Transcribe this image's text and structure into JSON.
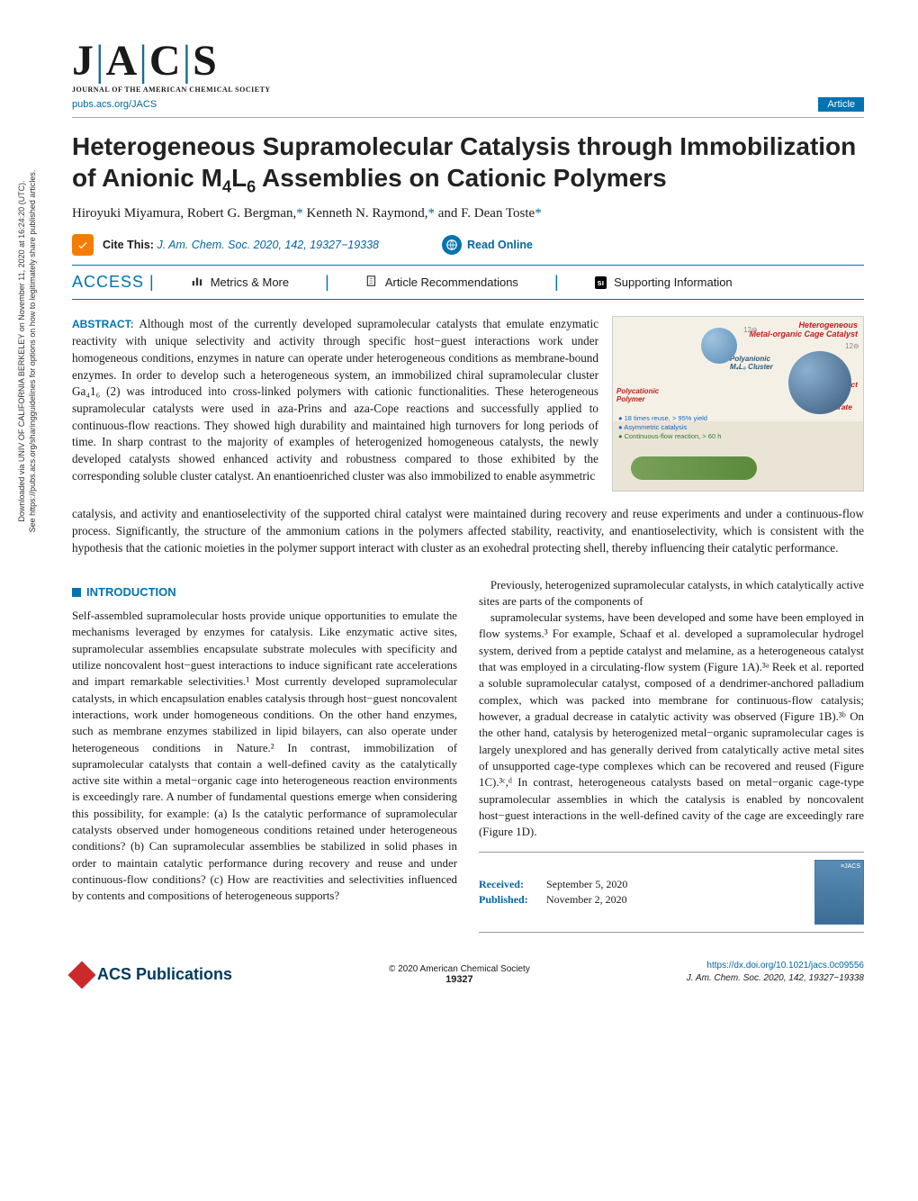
{
  "journal": {
    "logo_main": "J|A|C|S",
    "logo_sub": "JOURNAL OF THE AMERICAN CHEMICAL SOCIETY",
    "url": "pubs.acs.org/JACS",
    "type_badge": "Article"
  },
  "side_note": {
    "line1": "Downloaded via UNIV OF CALIFORNIA BERKELEY on November 11, 2020 at 16:24:20 (UTC).",
    "line2": "See https://pubs.acs.org/sharingguidelines for options on how to legitimately share published articles."
  },
  "paper": {
    "title_html": "Heterogeneous Supramolecular Catalysis through Immobilization of Anionic M<sub>4</sub>L<sub>6</sub> Assemblies on Cationic Polymers",
    "authors_html": "Hiroyuki Miyamura, Robert G. Bergman,<span class='ast'>*</span> Kenneth N. Raymond,<span class='ast'>*</span> and F. Dean Toste<span class='ast'>*</span>",
    "cite_label": "Cite This:",
    "cite_text": "J. Am. Chem. Soc. 2020, 142, 19327−19338",
    "read_online": "Read Online"
  },
  "nav": {
    "access": "ACCESS",
    "metrics": "Metrics & More",
    "recs": "Article Recommendations",
    "si": "Supporting Information",
    "si_badge": "sı"
  },
  "abstract": {
    "label": "ABSTRACT:",
    "text_part1": "Although most of the currently developed supramolecular catalysts that emulate enzymatic reactivity with unique selectivity and activity through specific host−guest interactions work under homogeneous conditions, enzymes in nature can operate under heterogeneous conditions as membrane-bound enzymes. In order to develop such a heterogeneous system, an immobilized chiral supramolecular cluster Ga₄1₆ (2) was introduced into cross-linked polymers with cationic functionalities. These heterogeneous supramolecular catalysts were used in aza-Prins and aza-Cope reactions and successfully applied to continuous-flow reactions. They showed high durability and maintained high turnovers for long periods of time. In sharp contrast to the majority of examples of heterogenized homogeneous catalysts, the newly developed catalysts showed enhanced activity and robustness compared to those exhibited by the corresponding soluble cluster catalyst. An enantioenriched cluster was also immobilized to enable asymmetric",
    "text_part2": "catalysis, and activity and enantioselectivity of the supported chiral catalyst were maintained during recovery and reuse experiments and under a continuous-flow process. Significantly, the structure of the ammonium cations in the polymers affected stability, reactivity, and enantioselectivity, which is consistent with the hypothesis that the cationic moieties in the polymer support interact with cluster as an exohedral protecting shell, thereby influencing their catalytic performance."
  },
  "toc_graphic": {
    "background_top": "#f5f0e6",
    "background_bot": "#eae4d6",
    "heterogeneous_label": "Heterogeneous\nMetal-organic Cage Catalyst",
    "polyanionic": "Polyanionic\nM₄L₆ Cluster",
    "polycationic": "Polycationic\nPolymer",
    "product": "Product",
    "substrate": "Substrate",
    "bullet1": "● 18 times reuse, > 95% yield",
    "bullet2": "● Asymmetric catalysis",
    "bullet3": "● Continuous-flow reaction, > 60 h",
    "charge": "12⊖",
    "colors": {
      "red_text": "#c02020",
      "blue_text": "#2a5a7a",
      "bullet_blue": "#1565c0",
      "bullet_green": "#2e7d32",
      "sphere_blue": "#5a8bb5",
      "sphere_dark": "#3a5a7a"
    }
  },
  "sections": {
    "introduction_head": "INTRODUCTION"
  },
  "body": {
    "col1_p1": "Self-assembled supramolecular hosts provide unique opportunities to emulate the mechanisms leveraged by enzymes for catalysis. Like enzymatic active sites, supramolecular assemblies encapsulate substrate molecules with specificity and utilize noncovalent host−guest interactions to induce significant rate accelerations and impart remarkable selectivities.¹ Most currently developed supramolecular catalysts, in which encapsulation enables catalysis through host−guest noncovalent interactions, work under homogeneous conditions. On the other hand enzymes, such as membrane enzymes stabilized in lipid bilayers, can also operate under heterogeneous conditions in Nature.² In contrast, immobilization of supramolecular catalysts that contain a well-defined cavity as the catalytically active site within a metal−organic cage into heterogeneous reaction environments is exceedingly rare. A number of fundamental questions emerge when considering this possibility, for example: (a) Is the catalytic performance of supramolecular catalysts observed under homogeneous conditions retained under heterogeneous conditions? (b) Can supramolecular assemblies be stabilized in solid phases in order to maintain catalytic performance during recovery and reuse and under continuous-flow conditions? (c) How are reactivities and selectivities influenced by contents and compositions of heterogeneous supports?",
    "col1_p2": "Previously, heterogenized supramolecular catalysts, in which catalytically active sites are parts of the components of",
    "col2_p1": "supramolecular systems, have been developed and some have been employed in flow systems.³ For example, Schaaf et al. developed a supramolecular hydrogel system, derived from a peptide catalyst and melamine, as a heterogeneous catalyst that was employed in a circulating-flow system (Figure 1A).³ᵃ Reek et al. reported a soluble supramolecular catalyst, composed of a dendrimer-anchored palladium complex, which was packed into membrane for continuous-flow catalysis; however, a gradual decrease in catalytic activity was observed (Figure 1B).³ᵇ On the other hand, catalysis by heterogenized metal−organic supramolecular cages is largely unexplored and has generally derived from catalytically active metal sites of unsupported cage-type complexes which can be recovered and reused (Figure 1C).³ᶜ,ᵈ In contrast, heterogeneous catalysts based on metal−organic cage-type supramolecular assemblies in which the catalysis is enabled by noncovalent host−guest interactions in the well-defined cavity of the cage are exceedingly rare (Figure 1D)."
  },
  "received": {
    "received_label": "Received:",
    "received_date": "September 5, 2020",
    "published_label": "Published:",
    "published_date": "November 2, 2020"
  },
  "footer": {
    "publisher": "ACS Publications",
    "copyright": "© 2020 American Chemical Society",
    "page": "19327",
    "doi": "https://dx.doi.org/10.1021/jacs.0c09556",
    "ref": "J. Am. Chem. Soc. 2020, 142, 19327−19338"
  },
  "colors": {
    "brand_blue": "#0073b0",
    "link_blue": "#0066a4",
    "orange": "#f57c00",
    "text": "#1a1a1a"
  }
}
